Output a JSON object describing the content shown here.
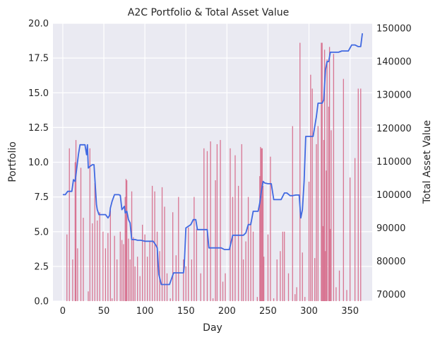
{
  "chart_data": {
    "type": "bar+line",
    "title": "A2C Portfolio & Total Asset Value",
    "xlabel": "Day",
    "ylabel_left": "Portfolio",
    "ylabel_right": "Total Asset Value",
    "xlim": [
      -12,
      377
    ],
    "ylim_left": [
      0,
      20
    ],
    "ylim_right": [
      68000,
      151500
    ],
    "x_ticks": [
      0,
      50,
      100,
      150,
      200,
      250,
      300,
      350
    ],
    "y_left_ticks": [
      "0.0",
      "2.5",
      "5.0",
      "7.5",
      "10.0",
      "12.5",
      "15.0",
      "17.5",
      "20.0"
    ],
    "y_right_ticks": [
      "70000",
      "80000",
      "90000",
      "100000",
      "110000",
      "120000",
      "130000",
      "140000",
      "150000"
    ],
    "grid": true,
    "background": "#eaeaf2",
    "bar_color": "#d87592",
    "line_color": "#4169e1",
    "bars_portfolio": {
      "x": [
        5,
        8,
        12,
        15,
        16,
        18,
        22,
        25,
        31,
        33,
        36,
        39,
        42,
        45,
        49,
        52,
        55,
        58,
        60,
        63,
        66,
        70,
        72,
        74,
        76,
        77,
        78,
        80,
        82,
        84,
        86,
        88,
        91,
        94,
        97,
        100,
        103,
        106,
        109,
        112,
        115,
        118,
        121,
        124,
        127,
        131,
        134,
        138,
        141,
        147,
        150,
        153,
        157,
        160,
        163,
        168,
        172,
        176,
        180,
        183,
        186,
        188,
        192,
        195,
        198,
        204,
        207,
        210,
        214,
        218,
        220,
        223,
        226,
        229,
        232,
        237,
        240,
        241,
        242,
        243,
        244,
        245,
        250,
        253,
        257,
        261,
        265,
        268,
        270,
        275,
        280,
        283,
        285,
        289,
        292,
        295,
        300,
        302,
        304,
        307,
        309,
        311,
        315,
        316,
        317,
        318,
        319,
        320,
        321,
        322,
        324,
        325,
        326,
        327,
        330,
        333,
        337,
        342,
        346,
        350,
        356,
        360,
        363
      ],
      "values": [
        4.8,
        11.0,
        3.0,
        10.0,
        11.6,
        3.8,
        9.6,
        6.0,
        0.7,
        11.0,
        5.6,
        8.5,
        5.8,
        6.4,
        5.0,
        3.8,
        4.9,
        6.5,
        0.2,
        4.7,
        3.0,
        5.0,
        4.4,
        4.1,
        7.5,
        8.8,
        8.7,
        4.5,
        3.0,
        7.9,
        4.6,
        2.5,
        3.2,
        1.8,
        5.5,
        4.8,
        3.2,
        4.3,
        8.3,
        7.9,
        5.0,
        3.6,
        8.2,
        6.8,
        2.0,
        0.2,
        6.4,
        3.3,
        7.5,
        3.0,
        2.5,
        5.3,
        3.0,
        7.5,
        5.2,
        2.0,
        11.0,
        10.8,
        11.5,
        0.2,
        8.7,
        11.3,
        11.6,
        1.4,
        2.0,
        11.0,
        7.5,
        10.5,
        8.3,
        11.3,
        3.0,
        4.3,
        7.5,
        5.7,
        5.0,
        0.3,
        9.0,
        11.1,
        11.0,
        11.0,
        8.3,
        3.2,
        4.8,
        10.4,
        0.2,
        3.0,
        3.6,
        5.0,
        5.0,
        2.0,
        12.6,
        0.5,
        1.0,
        18.6,
        3.5,
        0.3,
        8.6,
        16.3,
        15.3,
        3.1,
        11.3,
        12.6,
        18.6,
        18.6,
        5.4,
        11.6,
        18.1,
        3.6,
        9.4,
        17.4,
        14.0,
        18.3,
        5.2,
        12.3,
        17.8,
        1.0,
        2.2,
        16.0,
        0.8,
        8.9,
        10.3,
        15.3,
        15.3
      ]
    },
    "line_total_asset": {
      "x": [
        0,
        3,
        6,
        9,
        11,
        13,
        15,
        17,
        19,
        21,
        23,
        25,
        27,
        29,
        30,
        31,
        33,
        36,
        38,
        41,
        42,
        44,
        46,
        49,
        52,
        55,
        57,
        58,
        60,
        63,
        66,
        68,
        70,
        72,
        75,
        76,
        78,
        80,
        82,
        84,
        86,
        88,
        91,
        95,
        100,
        106,
        110,
        113,
        115,
        117,
        120,
        125,
        130,
        135,
        140,
        145,
        147,
        148,
        150,
        153,
        156,
        159,
        162,
        164,
        166,
        170,
        174,
        176,
        178,
        183,
        188,
        193,
        197,
        200,
        203,
        207,
        211,
        214,
        218,
        220,
        223,
        226,
        229,
        232,
        235,
        238,
        240,
        242,
        244,
        246,
        250,
        254,
        257,
        260,
        263,
        266,
        270,
        273,
        277,
        280,
        284,
        286,
        288,
        290,
        292,
        294,
        296,
        298,
        300,
        303,
        305,
        307,
        309,
        311,
        314,
        316,
        318,
        320,
        322,
        324,
        326,
        328,
        330,
        333,
        336,
        340,
        344,
        348,
        352,
        356,
        360,
        363,
        365
      ],
      "values": [
        100000,
        100000,
        101000,
        101000,
        101000,
        104500,
        104000,
        108000,
        112000,
        115000,
        115000,
        115000,
        115000,
        112000,
        115000,
        108000,
        108500,
        109000,
        109000,
        97000,
        95500,
        94000,
        94000,
        94000,
        94000,
        93000,
        93800,
        96000,
        98000,
        100000,
        100000,
        100000,
        99800,
        95500,
        96500,
        94500,
        95000,
        92500,
        91500,
        86500,
        86500,
        86500,
        86300,
        86300,
        86000,
        86000,
        86000,
        85000,
        84000,
        76000,
        73000,
        73000,
        73000,
        76500,
        76500,
        76500,
        76500,
        78500,
        90000,
        90500,
        91000,
        92500,
        92500,
        89500,
        89500,
        89500,
        89500,
        89500,
        84000,
        84000,
        84000,
        84000,
        83500,
        83500,
        83500,
        87800,
        87800,
        87800,
        87800,
        87800,
        88500,
        91000,
        91000,
        95000,
        95000,
        95000,
        97500,
        101000,
        104000,
        103500,
        103300,
        103300,
        98500,
        98500,
        98500,
        98500,
        100500,
        100500,
        99700,
        99700,
        99900,
        99900,
        99900,
        93000,
        95500,
        104000,
        117500,
        117500,
        117500,
        117500,
        117500,
        120500,
        123500,
        127500,
        127500,
        127500,
        128500,
        137500,
        140000,
        140000,
        142800,
        142800,
        142800,
        142800,
        142800,
        143200,
        143200,
        143200,
        145000,
        145000,
        144500,
        144500,
        148500
      ]
    }
  }
}
